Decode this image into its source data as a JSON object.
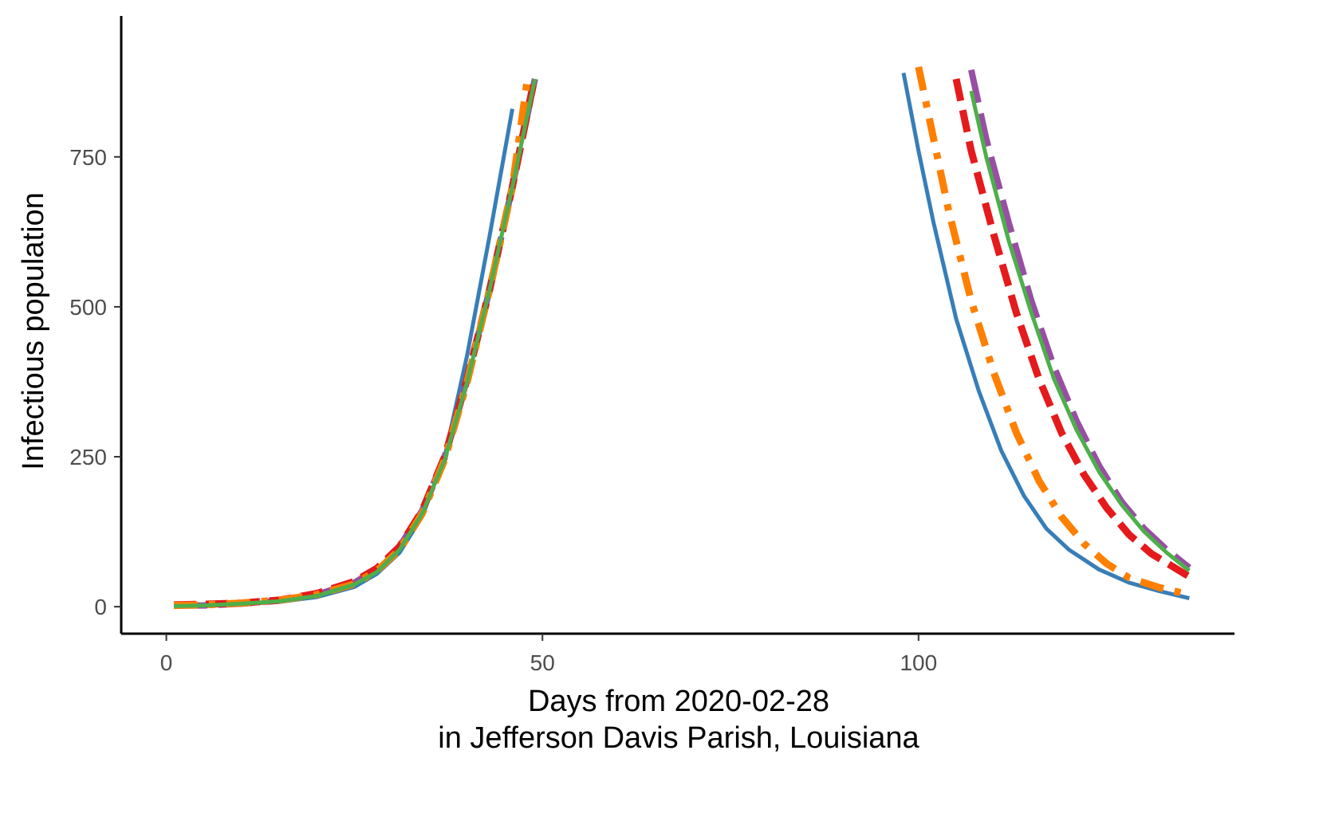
{
  "chart_data": {
    "type": "line",
    "xlabel": [
      "Days from 2020-02-28",
      "in Jefferson Davis Parish, Louisiana"
    ],
    "ylabel": "Infectious population",
    "xlim": [
      -6,
      142
    ],
    "ylim": [
      -45,
      985
    ],
    "x_ticks": [
      0,
      50,
      100
    ],
    "x_tick_labels": [
      "0",
      "50",
      "100"
    ],
    "y_ticks": [
      0,
      250,
      500,
      750
    ],
    "y_tick_labels": [
      "0",
      "250",
      "500",
      "750"
    ],
    "grid": false,
    "legend": "none",
    "series": [
      {
        "color": "#377eb8",
        "linestyle": "solid",
        "points": [
          [
            1,
            0
          ],
          [
            5,
            2
          ],
          [
            10,
            4
          ],
          [
            15,
            8
          ],
          [
            20,
            16
          ],
          [
            25,
            33
          ],
          [
            28,
            55
          ],
          [
            31,
            90
          ],
          [
            34,
            150
          ],
          [
            37,
            250
          ],
          [
            40,
            420
          ],
          [
            43,
            620
          ],
          [
            46,
            830
          ]
        ],
        "points_late": [
          [
            98,
            890
          ],
          [
            100,
            760
          ],
          [
            102,
            640
          ],
          [
            105,
            480
          ],
          [
            108,
            360
          ],
          [
            111,
            260
          ],
          [
            114,
            185
          ],
          [
            117,
            130
          ],
          [
            120,
            95
          ],
          [
            124,
            62
          ],
          [
            128,
            40
          ],
          [
            132,
            26
          ],
          [
            136,
            14
          ]
        ]
      },
      {
        "color": "#984ea3",
        "linestyle": "longdash",
        "points": [
          [
            1,
            2
          ],
          [
            5,
            2
          ],
          [
            10,
            5
          ],
          [
            15,
            10
          ],
          [
            20,
            20
          ],
          [
            25,
            40
          ],
          [
            28,
            63
          ],
          [
            31,
            100
          ],
          [
            34,
            160
          ],
          [
            37,
            250
          ],
          [
            40,
            380
          ],
          [
            43,
            530
          ],
          [
            46,
            700
          ],
          [
            49,
            880
          ]
        ],
        "points_late": [
          [
            107,
            895
          ],
          [
            109,
            780
          ],
          [
            112,
            640
          ],
          [
            115,
            510
          ],
          [
            118,
            400
          ],
          [
            121,
            310
          ],
          [
            124,
            235
          ],
          [
            127,
            175
          ],
          [
            130,
            130
          ],
          [
            133,
            95
          ],
          [
            136,
            65
          ]
        ]
      },
      {
        "color": "#e41a1c",
        "linestyle": "dashed",
        "points": [
          [
            1,
            3
          ],
          [
            5,
            4
          ],
          [
            10,
            6
          ],
          [
            15,
            11
          ],
          [
            20,
            22
          ],
          [
            25,
            42
          ],
          [
            28,
            64
          ],
          [
            31,
            100
          ],
          [
            34,
            160
          ],
          [
            37,
            250
          ],
          [
            40,
            380
          ],
          [
            43,
            530
          ],
          [
            46,
            700
          ],
          [
            49,
            885
          ]
        ],
        "points_late": [
          [
            105,
            880
          ],
          [
            107,
            760
          ],
          [
            110,
            620
          ],
          [
            113,
            490
          ],
          [
            116,
            380
          ],
          [
            119,
            290
          ],
          [
            122,
            220
          ],
          [
            125,
            165
          ],
          [
            128,
            120
          ],
          [
            131,
            88
          ],
          [
            136,
            50
          ]
        ]
      },
      {
        "color": "#ff7f00",
        "linestyle": "dashdot",
        "points": [
          [
            1,
            2
          ],
          [
            5,
            3
          ],
          [
            10,
            6
          ],
          [
            15,
            11
          ],
          [
            20,
            20
          ],
          [
            25,
            38
          ],
          [
            28,
            60
          ],
          [
            31,
            95
          ],
          [
            34,
            155
          ],
          [
            37,
            245
          ],
          [
            40,
            375
          ],
          [
            43,
            530
          ],
          [
            46,
            700
          ],
          [
            48,
            880
          ]
        ],
        "points_late": [
          [
            100,
            900
          ],
          [
            102,
            780
          ],
          [
            104,
            660
          ],
          [
            107,
            510
          ],
          [
            110,
            390
          ],
          [
            113,
            290
          ],
          [
            116,
            210
          ],
          [
            119,
            150
          ],
          [
            122,
            105
          ],
          [
            125,
            72
          ],
          [
            128,
            48
          ],
          [
            132,
            32
          ],
          [
            136,
            20
          ]
        ]
      },
      {
        "color": "#4daf4a",
        "linestyle": "solid",
        "points": [
          [
            1,
            1
          ],
          [
            5,
            2
          ],
          [
            10,
            5
          ],
          [
            15,
            9
          ],
          [
            20,
            18
          ],
          [
            25,
            37
          ],
          [
            28,
            58
          ],
          [
            31,
            95
          ],
          [
            34,
            155
          ],
          [
            37,
            245
          ],
          [
            40,
            375
          ],
          [
            43,
            530
          ],
          [
            46,
            700
          ],
          [
            49,
            880
          ]
        ],
        "points_late": [
          [
            107,
            860
          ],
          [
            109,
            750
          ],
          [
            112,
            610
          ],
          [
            115,
            490
          ],
          [
            118,
            380
          ],
          [
            121,
            295
          ],
          [
            124,
            225
          ],
          [
            127,
            170
          ],
          [
            130,
            125
          ],
          [
            133,
            90
          ],
          [
            136,
            60
          ]
        ]
      }
    ]
  }
}
